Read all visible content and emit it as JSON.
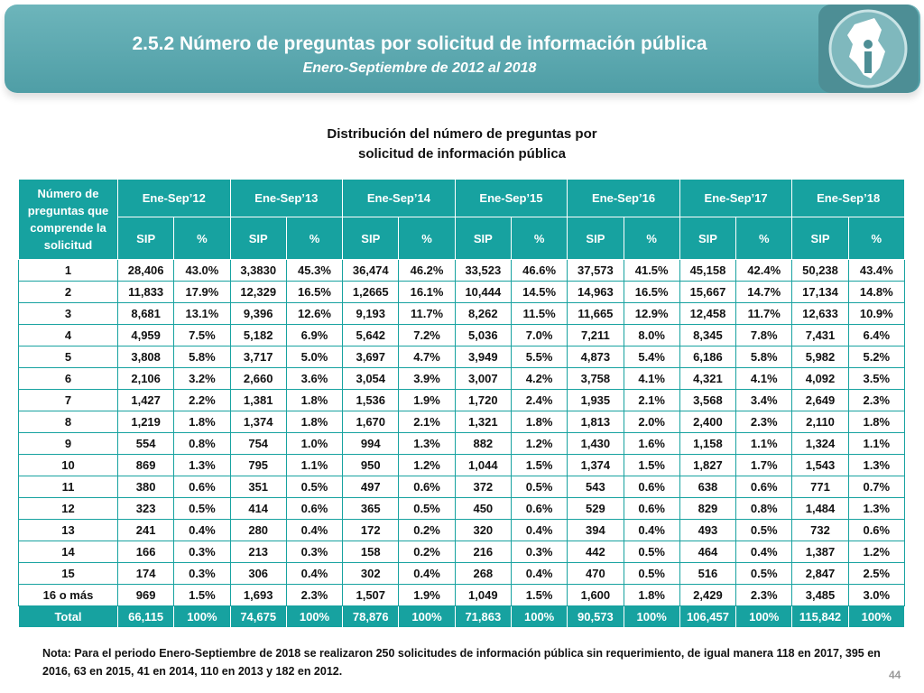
{
  "header": {
    "title": "2.5.2 Número de preguntas por solicitud de información pública",
    "subtitle": "Enero-Septiembre de 2012 al 2018"
  },
  "heading": [
    "Distribución del número de preguntas por",
    "solicitud de información pública"
  ],
  "table": {
    "corner": "Número de preguntas que comprende la solicitud",
    "years": [
      "Ene-Sep’12",
      "Ene-Sep’13",
      "Ene-Sep’14",
      "Ene-Sep’15",
      "Ene-Sep’16",
      "Ene-Sep’17",
      "Ene-Sep’18"
    ],
    "subheaders": [
      "SIP",
      "%",
      "SIP",
      "%",
      "SIP",
      "%",
      "SIP",
      "%",
      "SIP",
      "%",
      "SIP",
      "%",
      "SIP",
      "%"
    ],
    "rows": [
      [
        "1",
        "28,406",
        "43.0%",
        "3,3830",
        "45.3%",
        "36,474",
        "46.2%",
        "33,523",
        "46.6%",
        "37,573",
        "41.5%",
        "45,158",
        "42.4%",
        "50,238",
        "43.4%"
      ],
      [
        "2",
        "11,833",
        "17.9%",
        "12,329",
        "16.5%",
        "1,2665",
        "16.1%",
        "10,444",
        "14.5%",
        "14,963",
        "16.5%",
        "15,667",
        "14.7%",
        "17,134",
        "14.8%"
      ],
      [
        "3",
        "8,681",
        "13.1%",
        "9,396",
        "12.6%",
        "9,193",
        "11.7%",
        "8,262",
        "11.5%",
        "11,665",
        "12.9%",
        "12,458",
        "11.7%",
        "12,633",
        "10.9%"
      ],
      [
        "4",
        "4,959",
        "7.5%",
        "5,182",
        "6.9%",
        "5,642",
        "7.2%",
        "5,036",
        "7.0%",
        "7,211",
        "8.0%",
        "8,345",
        "7.8%",
        "7,431",
        "6.4%"
      ],
      [
        "5",
        "3,808",
        "5.8%",
        "3,717",
        "5.0%",
        "3,697",
        "4.7%",
        "3,949",
        "5.5%",
        "4,873",
        "5.4%",
        "6,186",
        "5.8%",
        "5,982",
        "5.2%"
      ],
      [
        "6",
        "2,106",
        "3.2%",
        "2,660",
        "3.6%",
        "3,054",
        "3.9%",
        "3,007",
        "4.2%",
        "3,758",
        "4.1%",
        "4,321",
        "4.1%",
        "4,092",
        "3.5%"
      ],
      [
        "7",
        "1,427",
        "2.2%",
        "1,381",
        "1.8%",
        "1,536",
        "1.9%",
        "1,720",
        "2.4%",
        "1,935",
        "2.1%",
        "3,568",
        "3.4%",
        "2,649",
        "2.3%"
      ],
      [
        "8",
        "1,219",
        "1.8%",
        "1,374",
        "1.8%",
        "1,670",
        "2.1%",
        "1,321",
        "1.8%",
        "1,813",
        "2.0%",
        "2,400",
        "2.3%",
        "2,110",
        "1.8%"
      ],
      [
        "9",
        "554",
        "0.8%",
        "754",
        "1.0%",
        "994",
        "1.3%",
        "882",
        "1.2%",
        "1,430",
        "1.6%",
        "1,158",
        "1.1%",
        "1,324",
        "1.1%"
      ],
      [
        "10",
        "869",
        "1.3%",
        "795",
        "1.1%",
        "950",
        "1.2%",
        "1,044",
        "1.5%",
        "1,374",
        "1.5%",
        "1,827",
        "1.7%",
        "1,543",
        "1.3%"
      ],
      [
        "11",
        "380",
        "0.6%",
        "351",
        "0.5%",
        "497",
        "0.6%",
        "372",
        "0.5%",
        "543",
        "0.6%",
        "638",
        "0.6%",
        "771",
        "0.7%"
      ],
      [
        "12",
        "323",
        "0.5%",
        "414",
        "0.6%",
        "365",
        "0.5%",
        "450",
        "0.6%",
        "529",
        "0.6%",
        "829",
        "0.8%",
        "1,484",
        "1.3%"
      ],
      [
        "13",
        "241",
        "0.4%",
        "280",
        "0.4%",
        "172",
        "0.2%",
        "320",
        "0.4%",
        "394",
        "0.4%",
        "493",
        "0.5%",
        "732",
        "0.6%"
      ],
      [
        "14",
        "166",
        "0.3%",
        "213",
        "0.3%",
        "158",
        "0.2%",
        "216",
        "0.3%",
        "442",
        "0.5%",
        "464",
        "0.4%",
        "1,387",
        "1.2%"
      ],
      [
        "15",
        "174",
        "0.3%",
        "306",
        "0.4%",
        "302",
        "0.4%",
        "268",
        "0.4%",
        "470",
        "0.5%",
        "516",
        "0.5%",
        "2,847",
        "2.5%"
      ],
      [
        "16 o más",
        "969",
        "1.5%",
        "1,693",
        "2.3%",
        "1,507",
        "1.9%",
        "1,049",
        "1.5%",
        "1,600",
        "1.8%",
        "2,429",
        "2.3%",
        "3,485",
        "3.0%"
      ]
    ],
    "total": [
      "Total",
      "66,115",
      "100%",
      "74,675",
      "100%",
      "78,876",
      "100%",
      "71,863",
      "100%",
      "90,573",
      "100%",
      "106,457",
      "100%",
      "115,842",
      "100%"
    ]
  },
  "note": "Nota: Para el periodo Enero-Septiembre de 2018 se realizaron 250 solicitudes de información pública sin requerimiento, de igual manera 118 en 2017, 395 en 2016, 63 en 2015, 41 en 2014, 110 en 2013 y 182 en 2012.",
  "page_number": "44"
}
